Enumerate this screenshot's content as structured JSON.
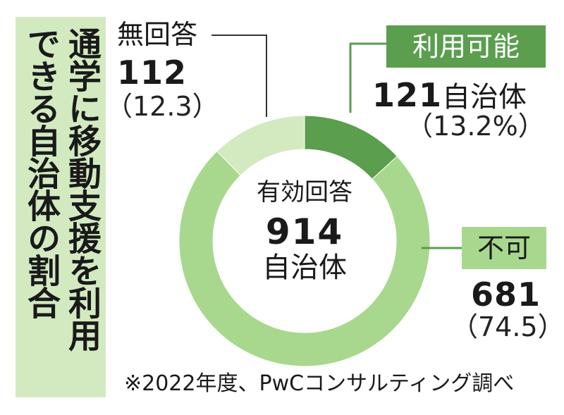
{
  "title": {
    "line1": "通学に移動支援を利用",
    "line2": "できる自治体の割合"
  },
  "chart_data": {
    "type": "pie",
    "style": "donut",
    "center_caption": "有効回答",
    "center_total": "914",
    "center_unit": "自治体",
    "slices": [
      {
        "label": "利用可能",
        "count": "121",
        "unit": "自治体",
        "value": 13.2,
        "percent_text": "（13.2%）",
        "color": "#5a9e4e"
      },
      {
        "label": "不可",
        "count": "681",
        "unit": "",
        "value": 74.5,
        "percent_text": "（74.5）",
        "color": "#a8d88d"
      },
      {
        "label": "無回答",
        "count": "112",
        "unit": "",
        "value": 12.3,
        "percent_text": "（12.3）",
        "color": "#d3eac1"
      }
    ]
  },
  "source_note": "※2022年度、PwCコンサルティング調べ",
  "colors": {
    "leader_line": "#5a9e4e",
    "leader_line_gray": "#333333",
    "panel": "#d3eac1"
  }
}
